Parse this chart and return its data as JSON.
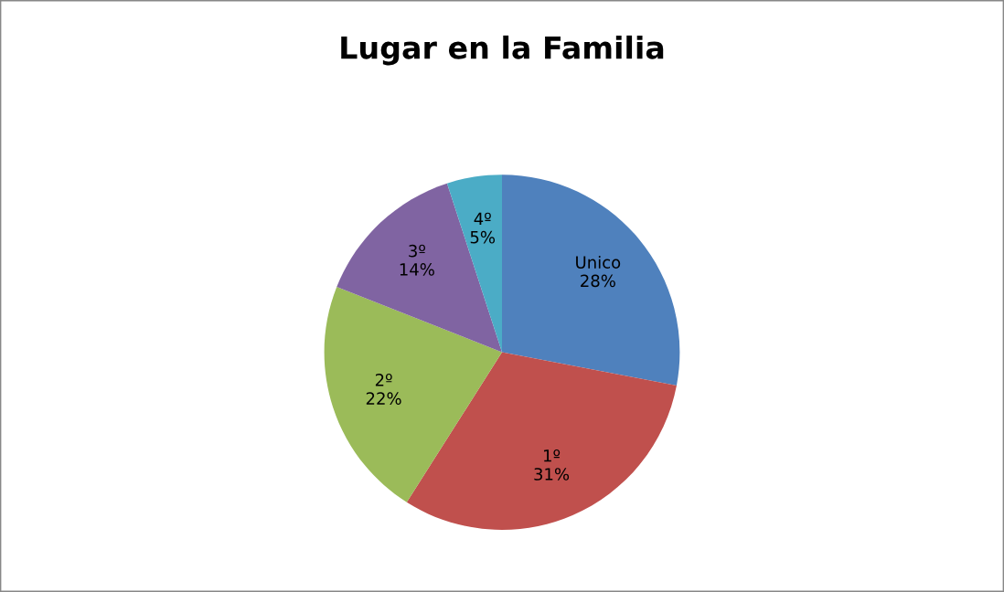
{
  "chart_data": {
    "type": "pie",
    "title": "Lugar en la Familia",
    "categories": [
      "Unico",
      "1º",
      "2º",
      "3º",
      "4º"
    ],
    "values": [
      28,
      31,
      22,
      14,
      5
    ],
    "value_labels": [
      "28%",
      "31%",
      "22%",
      "14%",
      "5%"
    ],
    "colors": [
      "#4f81bd",
      "#c0504d",
      "#9bbb59",
      "#8064a2",
      "#4bacc6"
    ],
    "legend": false
  }
}
